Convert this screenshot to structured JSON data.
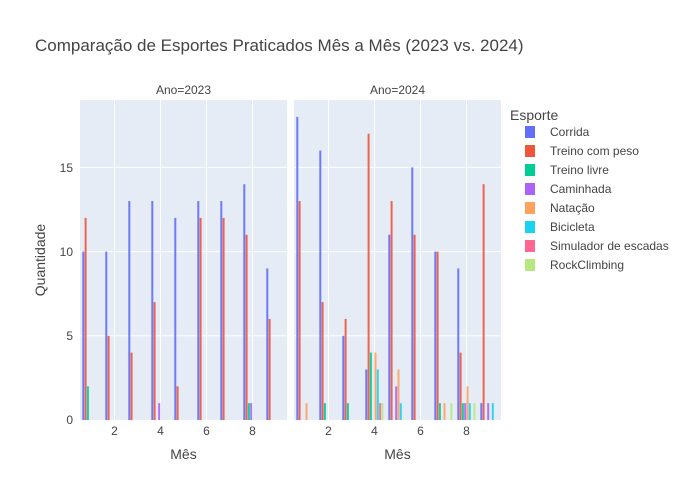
{
  "chart_data": {
    "type": "bar",
    "title": "Comparação de Esportes Praticados Mês a Mês (2023 vs. 2024)",
    "xlabel": "Mês",
    "ylabel": "Quantidade",
    "legend_title": "Esporte",
    "legend_position": "right",
    "grid": true,
    "xlim": [
      0.5,
      9.5
    ],
    "ylim": [
      0,
      19
    ],
    "x_ticks": [
      "2",
      "4",
      "6",
      "8"
    ],
    "y_ticks": [
      "0",
      "5",
      "10",
      "15"
    ],
    "series_colors": {
      "Corrida": "#636efa",
      "Treino com peso": "#EF553B",
      "Treino livre": "#00cc96",
      "Caminhada": "#ab63fa",
      "Natação": "#FFA15A",
      "Bicicleta": "#19d3f3",
      "Simulador de escadas": "#FF6692",
      "RockClimbing": "#B6E880"
    },
    "panels": [
      {
        "label": "Ano=2023",
        "series": [
          {
            "name": "Corrida",
            "values": [
              10,
              10,
              13,
              13,
              12,
              13,
              13,
              14,
              9
            ]
          },
          {
            "name": "Treino com peso",
            "values": [
              12,
              5,
              4,
              7,
              2,
              12,
              12,
              11,
              6
            ]
          },
          {
            "name": "Treino livre",
            "values": [
              2,
              0,
              0,
              0,
              0,
              0,
              0,
              1,
              0
            ]
          },
          {
            "name": "Caminhada",
            "values": [
              0,
              0,
              0,
              1,
              0,
              0,
              0,
              1,
              0
            ]
          },
          {
            "name": "Natação",
            "values": [
              0,
              0,
              0,
              0,
              0,
              0,
              0,
              0,
              0
            ]
          },
          {
            "name": "Bicicleta",
            "values": [
              0,
              0,
              0,
              0,
              0,
              0,
              0,
              0,
              0
            ]
          },
          {
            "name": "Simulador de escadas",
            "values": [
              0,
              0,
              0,
              0,
              0,
              0,
              0,
              0,
              0
            ]
          },
          {
            "name": "RockClimbing",
            "values": [
              0,
              0,
              0,
              0,
              0,
              0,
              0,
              0,
              0
            ]
          }
        ]
      },
      {
        "label": "Ano=2024",
        "series": [
          {
            "name": "Corrida",
            "values": [
              18,
              16,
              5,
              3,
              11,
              15,
              10,
              9,
              1
            ]
          },
          {
            "name": "Treino com peso",
            "values": [
              13,
              7,
              6,
              17,
              13,
              11,
              10,
              4,
              14
            ]
          },
          {
            "name": "Treino livre",
            "values": [
              0,
              1,
              1,
              4,
              0,
              0,
              1,
              1,
              0
            ]
          },
          {
            "name": "Caminhada",
            "values": [
              0,
              0,
              0,
              0,
              2,
              0,
              0,
              1,
              1
            ]
          },
          {
            "name": "Natação",
            "values": [
              1,
              0,
              0,
              4,
              3,
              0,
              1,
              2,
              0
            ]
          },
          {
            "name": "Bicicleta",
            "values": [
              0,
              0,
              0,
              3,
              1,
              0,
              0,
              1,
              1
            ]
          },
          {
            "name": "Simulador de escadas",
            "values": [
              0,
              0,
              0,
              1,
              0,
              0,
              0,
              0,
              0
            ]
          },
          {
            "name": "RockClimbing",
            "values": [
              0,
              0,
              0,
              1,
              0,
              0,
              1,
              1,
              0
            ]
          }
        ]
      }
    ]
  }
}
